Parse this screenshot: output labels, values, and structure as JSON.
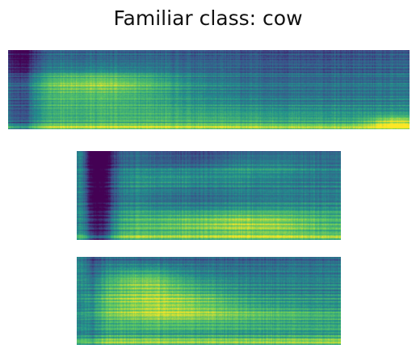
{
  "figure": {
    "title": "Familiar class: cow"
  },
  "colormap": {
    "name": "viridis",
    "stops": [
      "#440154",
      "#3b528b",
      "#21918c",
      "#5ec962",
      "#fde725"
    ]
  },
  "spectrograms": [
    {
      "name": "spectrogram-1"
    },
    {
      "name": "spectrogram-2"
    },
    {
      "name": "spectrogram-3"
    }
  ]
}
